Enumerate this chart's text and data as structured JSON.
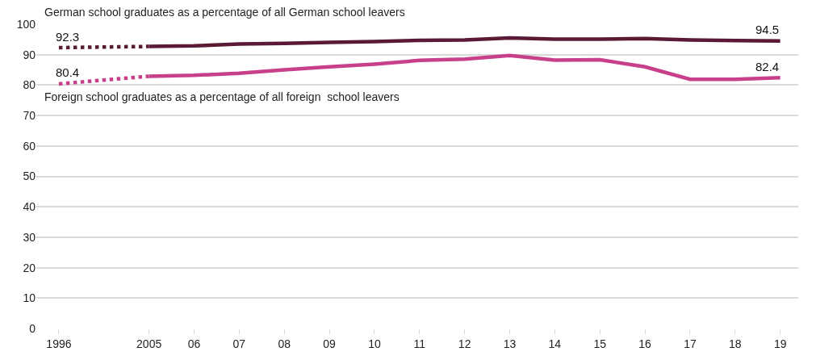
{
  "chart_data": {
    "type": "line",
    "categories": [
      "1996",
      null,
      "2005",
      "06",
      "07",
      "08",
      "09",
      "10",
      "11",
      "12",
      "13",
      "14",
      "15",
      "16",
      "17",
      "18",
      "19"
    ],
    "series": [
      {
        "name": "German school graduates as a percentage of all German school leavers",
        "color": "#5a1a35",
        "line_style": "solid",
        "values": [
          null,
          null,
          92.7,
          92.9,
          93.5,
          93.7,
          94.0,
          94.3,
          94.7,
          94.8,
          95.5,
          95.1,
          95.1,
          95.3,
          94.8,
          94.6,
          94.5
        ],
        "value_labels": [
          null,
          null,
          null,
          null,
          null,
          null,
          null,
          null,
          null,
          null,
          null,
          null,
          null,
          null,
          null,
          null,
          "94.5"
        ]
      },
      {
        "color": "#5a1a35",
        "line_style": "dotted",
        "values": [
          92.3,
          null,
          92.7,
          null,
          null,
          null,
          null,
          null,
          null,
          null,
          null,
          null,
          null,
          null,
          null,
          null,
          null
        ],
        "value_labels": [
          "92.3",
          null,
          null,
          null,
          null,
          null,
          null,
          null,
          null,
          null,
          null,
          null,
          null,
          null,
          null,
          null,
          null
        ]
      },
      {
        "name": "Foreign school graduates as a percentage of all foreign  school leavers",
        "color": "#c8408a",
        "line_style": "solid",
        "values": [
          null,
          null,
          82.9,
          83.2,
          83.9,
          85.0,
          86.0,
          86.9,
          88.1,
          88.5,
          89.7,
          88.2,
          88.3,
          86.0,
          81.9,
          81.9,
          82.4
        ],
        "value_labels": [
          null,
          null,
          null,
          null,
          null,
          null,
          null,
          null,
          null,
          null,
          null,
          null,
          null,
          null,
          null,
          null,
          "82.4"
        ]
      },
      {
        "color": "#c8408a",
        "line_style": "dotted",
        "values": [
          80.4,
          null,
          82.9,
          null,
          null,
          null,
          null,
          null,
          null,
          null,
          null,
          null,
          null,
          null,
          null,
          null,
          null
        ],
        "value_labels": [
          "80.4",
          null,
          null,
          null,
          null,
          null,
          null,
          null,
          null,
          null,
          null,
          null,
          null,
          null,
          null,
          null,
          null
        ]
      }
    ],
    "ylim": [
      0,
      100
    ],
    "yticks": [
      0,
      10,
      20,
      30,
      40,
      50,
      60,
      70,
      80,
      90,
      100
    ],
    "grid": "y",
    "legend": false,
    "marker": "none"
  }
}
